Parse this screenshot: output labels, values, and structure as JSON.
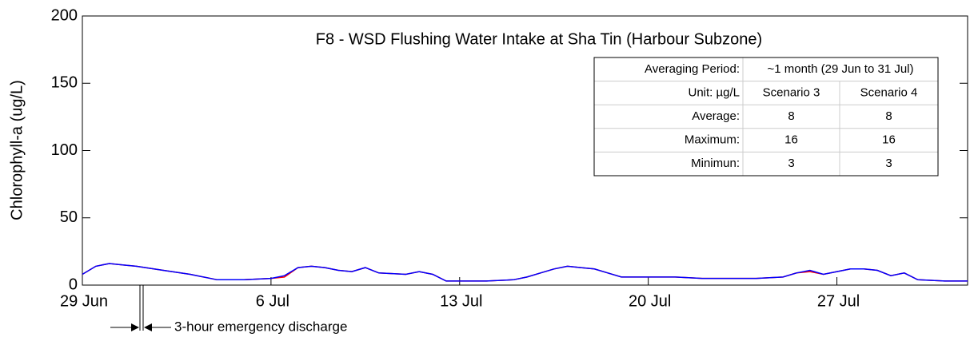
{
  "chart_data": {
    "type": "line",
    "title": "F8 - WSD Flushing Water Intake at Sha Tin (Harbour Subzone)",
    "ylabel": "Chlorophyll-a (ug/L)",
    "annotation": "3-hour emergency discharge",
    "x": [
      0,
      0.5,
      1,
      1.5,
      2,
      3,
      4,
      5,
      6,
      7,
      7.5,
      8,
      8.5,
      9,
      9.5,
      10,
      10.5,
      11,
      12,
      12.5,
      13,
      13.5,
      14,
      15,
      16,
      16.5,
      17,
      17.5,
      18,
      18.5,
      19,
      19.5,
      20,
      21,
      22,
      23,
      24,
      25,
      26,
      26.5,
      27,
      27.5,
      28,
      28.5,
      29,
      29.5,
      30,
      30.5,
      31,
      32,
      32.85
    ],
    "series": [
      {
        "color": "#ff0000",
        "values": [
          8,
          14,
          16,
          15,
          14,
          11,
          8,
          4,
          4,
          5,
          6,
          13,
          14,
          13,
          11,
          10,
          13,
          9,
          8,
          10,
          8,
          3,
          3,
          3,
          4,
          6,
          9,
          12,
          14,
          13,
          12,
          9,
          6,
          6,
          6,
          5,
          5,
          5,
          6,
          9,
          10,
          8,
          10,
          12,
          12,
          11,
          7,
          9,
          4,
          3,
          3
        ]
      },
      {
        "color": "#0000ff",
        "values": [
          8,
          14,
          16,
          15,
          14,
          11,
          8,
          4,
          4,
          5,
          7,
          13,
          14,
          13,
          11,
          10,
          13,
          9,
          8,
          10,
          8,
          3,
          3,
          3,
          4,
          6,
          9,
          12,
          14,
          13,
          12,
          9,
          6,
          6,
          6,
          5,
          5,
          5,
          6,
          9,
          11,
          8,
          10,
          12,
          12,
          11,
          7,
          9,
          4,
          3,
          3
        ]
      }
    ],
    "xlim": [
      0,
      32.85
    ],
    "xticks": [
      {
        "value": 0,
        "label": "29 Jun"
      },
      {
        "value": 7,
        "label": "6 Jul"
      },
      {
        "value": 14,
        "label": "13 Jul"
      },
      {
        "value": 21,
        "label": "20 Jul"
      },
      {
        "value": 28,
        "label": "27 Jul"
      }
    ],
    "ylim": [
      0,
      200
    ],
    "yticks": [
      0,
      50,
      100,
      150,
      200
    ]
  },
  "table": {
    "rows": [
      [
        "Averaging Period:",
        "~1 month (29 Jun to 31 Jul)"
      ],
      [
        "Unit: µg/L",
        "Scenario 3",
        "Scenario 4"
      ],
      [
        "Average:",
        "8",
        "8"
      ],
      [
        "Maximum:",
        "16",
        "16"
      ],
      [
        "Minimun:",
        "3",
        "3"
      ]
    ]
  }
}
